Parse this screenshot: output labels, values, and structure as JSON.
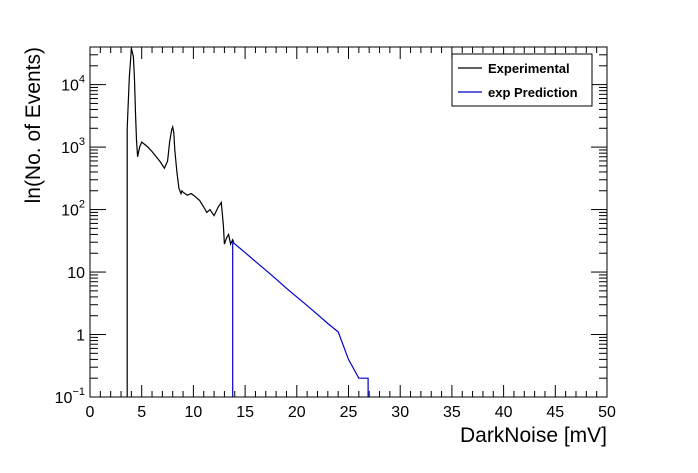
{
  "chart_data": {
    "type": "line",
    "title": "",
    "xlabel": "DarkNoise [mV]",
    "ylabel": "ln(No. of Events)",
    "xlim": [
      0,
      50
    ],
    "ylim": [
      0.1,
      40000
    ],
    "yscale": "log",
    "grid": false,
    "legend_position": "top-right",
    "x_ticks": [
      0,
      5,
      10,
      15,
      20,
      25,
      30,
      35,
      40,
      45,
      50
    ],
    "x_tick_labels": [
      "0",
      "5",
      "10",
      "15",
      "20",
      "25",
      "30",
      "35",
      "40",
      "45",
      "50"
    ],
    "y_ticks": [
      {
        "value": 0.1,
        "base": "10",
        "exp": "−1"
      },
      {
        "value": 1,
        "base": "1",
        "exp": ""
      },
      {
        "value": 10,
        "base": "10",
        "exp": ""
      },
      {
        "value": 100,
        "base": "10",
        "exp": "2"
      },
      {
        "value": 1000,
        "base": "10",
        "exp": "3"
      },
      {
        "value": 10000,
        "base": "10",
        "exp": "4"
      }
    ],
    "series": [
      {
        "name": "Experimental",
        "color": "#000000",
        "x": [
          3.6,
          3.6,
          3.8,
          4.0,
          4.2,
          4.3,
          4.4,
          4.5,
          4.6,
          4.8,
          5.0,
          5.3,
          5.6,
          6.0,
          6.4,
          6.8,
          7.2,
          7.5,
          7.7,
          7.9,
          8.0,
          8.1,
          8.2,
          8.4,
          8.6,
          8.8,
          8.9,
          9.0,
          9.4,
          9.8,
          10.2,
          10.6,
          11.0,
          11.3,
          11.6,
          12.0,
          12.4,
          12.7,
          12.9,
          13.0,
          13.2,
          13.4,
          13.6,
          13.8,
          13.9
        ],
        "y": [
          0.1,
          2000,
          13000,
          38000,
          28000,
          12000,
          3500,
          1300,
          700,
          1000,
          1200,
          1100,
          1000,
          850,
          700,
          580,
          460,
          600,
          1200,
          1900,
          2100,
          1700,
          900,
          400,
          220,
          180,
          200,
          190,
          170,
          180,
          160,
          140,
          110,
          90,
          100,
          80,
          110,
          130,
          55,
          28,
          35,
          40,
          28,
          33,
          30
        ]
      },
      {
        "name": "exp Prediction",
        "color": "#0000cc",
        "x": [
          13.8,
          13.8,
          15,
          16,
          17,
          18,
          19,
          20,
          21,
          22,
          23,
          24,
          25,
          26,
          26.9,
          26.9
        ],
        "y": [
          0.1,
          30,
          20.5,
          14.8,
          10.7,
          7.7,
          5.5,
          4.0,
          2.9,
          2.1,
          1.5,
          1.1,
          0.4,
          0.2,
          0.2,
          0.1
        ]
      }
    ]
  }
}
